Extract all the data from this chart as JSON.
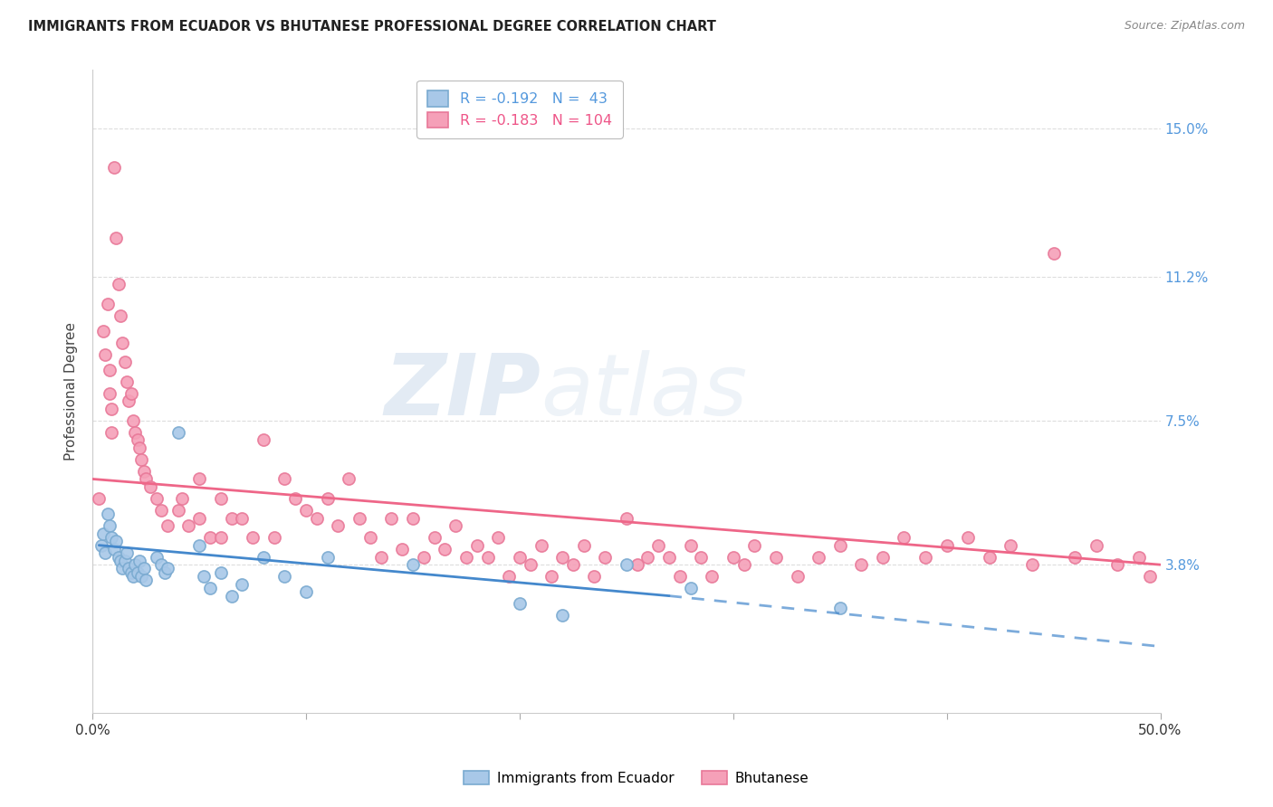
{
  "title": "IMMIGRANTS FROM ECUADOR VS BHUTANESE PROFESSIONAL DEGREE CORRELATION CHART",
  "source": "Source: ZipAtlas.com",
  "ylabel": "Professional Degree",
  "ytick_labels": [
    "3.8%",
    "7.5%",
    "11.2%",
    "15.0%"
  ],
  "ytick_values": [
    3.8,
    7.5,
    11.2,
    15.0
  ],
  "xlim": [
    0.0,
    50.0
  ],
  "ylim": [
    0.0,
    16.5
  ],
  "ecuador_color": "#a8c8e8",
  "bhutanese_color": "#f5a0b8",
  "ecuador_edge_color": "#7aaad0",
  "bhutanese_edge_color": "#e87898",
  "ecuador_line_color": "#4488cc",
  "bhutanese_line_color": "#ee6688",
  "watermark_color": "#c8d8e8",
  "ecuador_scatter": [
    [
      0.4,
      4.3
    ],
    [
      0.5,
      4.6
    ],
    [
      0.6,
      4.1
    ],
    [
      0.7,
      5.1
    ],
    [
      0.8,
      4.8
    ],
    [
      0.9,
      4.5
    ],
    [
      1.0,
      4.2
    ],
    [
      1.1,
      4.4
    ],
    [
      1.2,
      4.0
    ],
    [
      1.3,
      3.9
    ],
    [
      1.4,
      3.7
    ],
    [
      1.5,
      3.9
    ],
    [
      1.6,
      4.1
    ],
    [
      1.7,
      3.7
    ],
    [
      1.8,
      3.6
    ],
    [
      1.9,
      3.5
    ],
    [
      2.0,
      3.8
    ],
    [
      2.1,
      3.6
    ],
    [
      2.2,
      3.9
    ],
    [
      2.3,
      3.5
    ],
    [
      2.4,
      3.7
    ],
    [
      2.5,
      3.4
    ],
    [
      3.0,
      4.0
    ],
    [
      3.2,
      3.8
    ],
    [
      3.4,
      3.6
    ],
    [
      3.5,
      3.7
    ],
    [
      4.0,
      7.2
    ],
    [
      5.0,
      4.3
    ],
    [
      5.2,
      3.5
    ],
    [
      5.5,
      3.2
    ],
    [
      6.0,
      3.6
    ],
    [
      6.5,
      3.0
    ],
    [
      7.0,
      3.3
    ],
    [
      8.0,
      4.0
    ],
    [
      9.0,
      3.5
    ],
    [
      10.0,
      3.1
    ],
    [
      11.0,
      4.0
    ],
    [
      15.0,
      3.8
    ],
    [
      20.0,
      2.8
    ],
    [
      22.0,
      2.5
    ],
    [
      25.0,
      3.8
    ],
    [
      28.0,
      3.2
    ],
    [
      35.0,
      2.7
    ]
  ],
  "bhutanese_scatter": [
    [
      0.3,
      5.5
    ],
    [
      0.5,
      9.8
    ],
    [
      0.6,
      9.2
    ],
    [
      0.7,
      10.5
    ],
    [
      0.8,
      8.8
    ],
    [
      0.8,
      8.2
    ],
    [
      0.9,
      7.8
    ],
    [
      0.9,
      7.2
    ],
    [
      1.0,
      14.0
    ],
    [
      1.1,
      12.2
    ],
    [
      1.2,
      11.0
    ],
    [
      1.3,
      10.2
    ],
    [
      1.4,
      9.5
    ],
    [
      1.5,
      9.0
    ],
    [
      1.6,
      8.5
    ],
    [
      1.7,
      8.0
    ],
    [
      1.8,
      8.2
    ],
    [
      1.9,
      7.5
    ],
    [
      2.0,
      7.2
    ],
    [
      2.1,
      7.0
    ],
    [
      2.2,
      6.8
    ],
    [
      2.3,
      6.5
    ],
    [
      2.4,
      6.2
    ],
    [
      2.5,
      6.0
    ],
    [
      2.7,
      5.8
    ],
    [
      3.0,
      5.5
    ],
    [
      3.2,
      5.2
    ],
    [
      3.5,
      4.8
    ],
    [
      4.0,
      5.2
    ],
    [
      4.2,
      5.5
    ],
    [
      4.5,
      4.8
    ],
    [
      5.0,
      6.0
    ],
    [
      5.0,
      5.0
    ],
    [
      5.5,
      4.5
    ],
    [
      6.0,
      5.5
    ],
    [
      6.0,
      4.5
    ],
    [
      6.5,
      5.0
    ],
    [
      7.0,
      5.0
    ],
    [
      7.5,
      4.5
    ],
    [
      8.0,
      7.0
    ],
    [
      8.5,
      4.5
    ],
    [
      9.0,
      6.0
    ],
    [
      9.5,
      5.5
    ],
    [
      10.0,
      5.2
    ],
    [
      10.5,
      5.0
    ],
    [
      11.0,
      5.5
    ],
    [
      11.5,
      4.8
    ],
    [
      12.0,
      6.0
    ],
    [
      12.5,
      5.0
    ],
    [
      13.0,
      4.5
    ],
    [
      13.5,
      4.0
    ],
    [
      14.0,
      5.0
    ],
    [
      14.5,
      4.2
    ],
    [
      15.0,
      5.0
    ],
    [
      15.5,
      4.0
    ],
    [
      16.0,
      4.5
    ],
    [
      16.5,
      4.2
    ],
    [
      17.0,
      4.8
    ],
    [
      17.5,
      4.0
    ],
    [
      18.0,
      4.3
    ],
    [
      18.5,
      4.0
    ],
    [
      19.0,
      4.5
    ],
    [
      19.5,
      3.5
    ],
    [
      20.0,
      4.0
    ],
    [
      20.5,
      3.8
    ],
    [
      21.0,
      4.3
    ],
    [
      21.5,
      3.5
    ],
    [
      22.0,
      4.0
    ],
    [
      22.5,
      3.8
    ],
    [
      23.0,
      4.3
    ],
    [
      23.5,
      3.5
    ],
    [
      24.0,
      4.0
    ],
    [
      25.0,
      5.0
    ],
    [
      25.5,
      3.8
    ],
    [
      26.0,
      4.0
    ],
    [
      26.5,
      4.3
    ],
    [
      27.0,
      4.0
    ],
    [
      27.5,
      3.5
    ],
    [
      28.0,
      4.3
    ],
    [
      28.5,
      4.0
    ],
    [
      29.0,
      3.5
    ],
    [
      30.0,
      4.0
    ],
    [
      30.5,
      3.8
    ],
    [
      31.0,
      4.3
    ],
    [
      32.0,
      4.0
    ],
    [
      33.0,
      3.5
    ],
    [
      34.0,
      4.0
    ],
    [
      35.0,
      4.3
    ],
    [
      36.0,
      3.8
    ],
    [
      37.0,
      4.0
    ],
    [
      38.0,
      4.5
    ],
    [
      39.0,
      4.0
    ],
    [
      40.0,
      4.3
    ],
    [
      41.0,
      4.5
    ],
    [
      42.0,
      4.0
    ],
    [
      43.0,
      4.3
    ],
    [
      44.0,
      3.8
    ],
    [
      45.0,
      11.8
    ],
    [
      46.0,
      4.0
    ],
    [
      47.0,
      4.3
    ],
    [
      48.0,
      3.8
    ],
    [
      49.0,
      4.0
    ],
    [
      49.5,
      3.5
    ]
  ],
  "ecuador_trend_solid": {
    "x_start": 0.3,
    "y_start": 4.3,
    "x_end": 27.0,
    "y_end": 3.0
  },
  "ecuador_trend_dash": {
    "x_start": 27.0,
    "y_start": 3.0,
    "x_end": 50.0,
    "y_end": 1.7
  },
  "bhutanese_trend": {
    "x_start": 0.0,
    "y_start": 6.0,
    "x_end": 50.0,
    "y_end": 3.8
  }
}
